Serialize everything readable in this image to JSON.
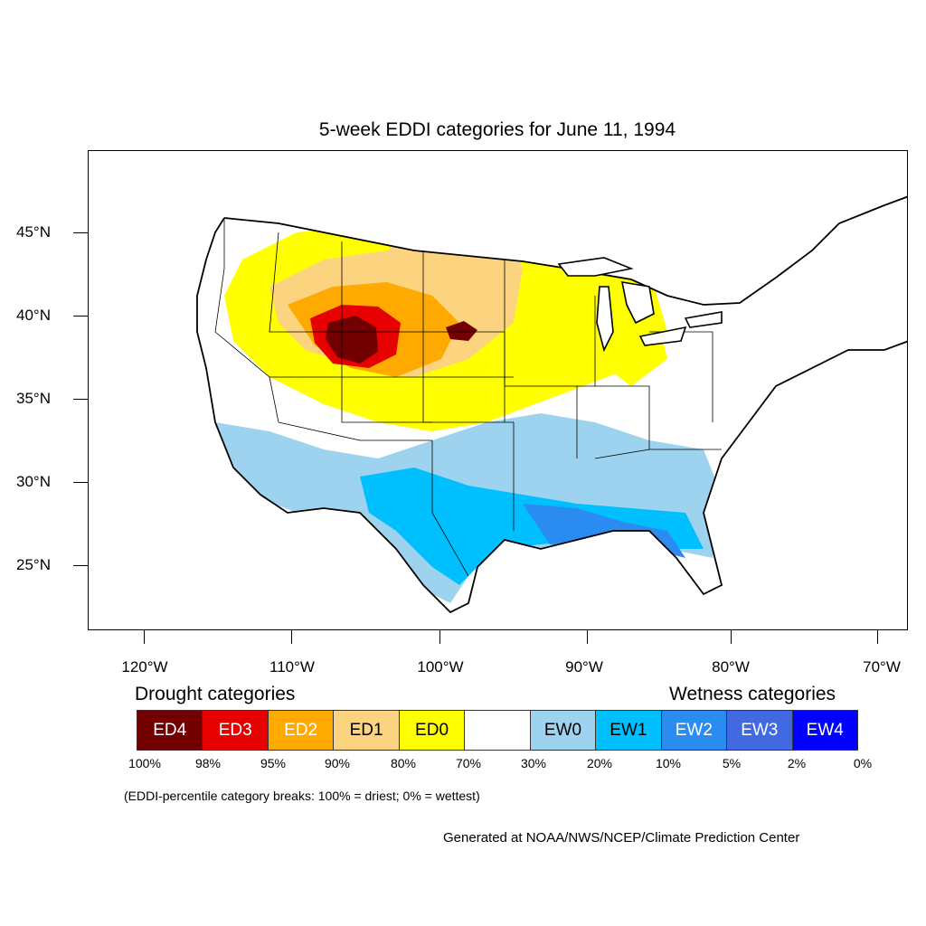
{
  "title": "5-week EDDI categories for June 11, 1994",
  "latitude_labels": [
    "45°N",
    "40°N",
    "35°N",
    "30°N",
    "25°N"
  ],
  "longitude_labels": [
    "120°W",
    "110°W",
    "100°W",
    "90°W",
    "80°W",
    "70°W"
  ],
  "legend": {
    "drought_heading": "Drought categories",
    "wetness_heading": "Wetness categories",
    "categories": [
      {
        "label": "ED4",
        "color": "#730000",
        "text_color": "#ffffff"
      },
      {
        "label": "ED3",
        "color": "#e60000",
        "text_color": "#ffffff"
      },
      {
        "label": "ED2",
        "color": "#ffaa00",
        "text_color": "#ffffff"
      },
      {
        "label": "ED1",
        "color": "#fcd37f",
        "text_color": "#000000"
      },
      {
        "label": "ED0",
        "color": "#ffff00",
        "text_color": "#000000"
      },
      {
        "label": "",
        "color": "#ffffff",
        "text_color": "#000000"
      },
      {
        "label": "EW0",
        "color": "#9ed3f0",
        "text_color": "#000000"
      },
      {
        "label": "EW1",
        "color": "#00bfff",
        "text_color": "#000000"
      },
      {
        "label": "EW2",
        "color": "#2a8cf0",
        "text_color": "#ffffff"
      },
      {
        "label": "EW3",
        "color": "#4169e1",
        "text_color": "#ffffff"
      },
      {
        "label": "EW4",
        "color": "#0000ff",
        "text_color": "#ffffff"
      }
    ],
    "breaks": [
      "100%",
      "98%",
      "95%",
      "90%",
      "80%",
      "70%",
      "30%",
      "20%",
      "10%",
      "5%",
      "2%",
      "0%"
    ]
  },
  "note": "(EDDI-percentile category breaks: 100% = driest; 0% = wettest)",
  "credit": "Generated at NOAA/NWS/NCEP/Climate Prediction Center"
}
